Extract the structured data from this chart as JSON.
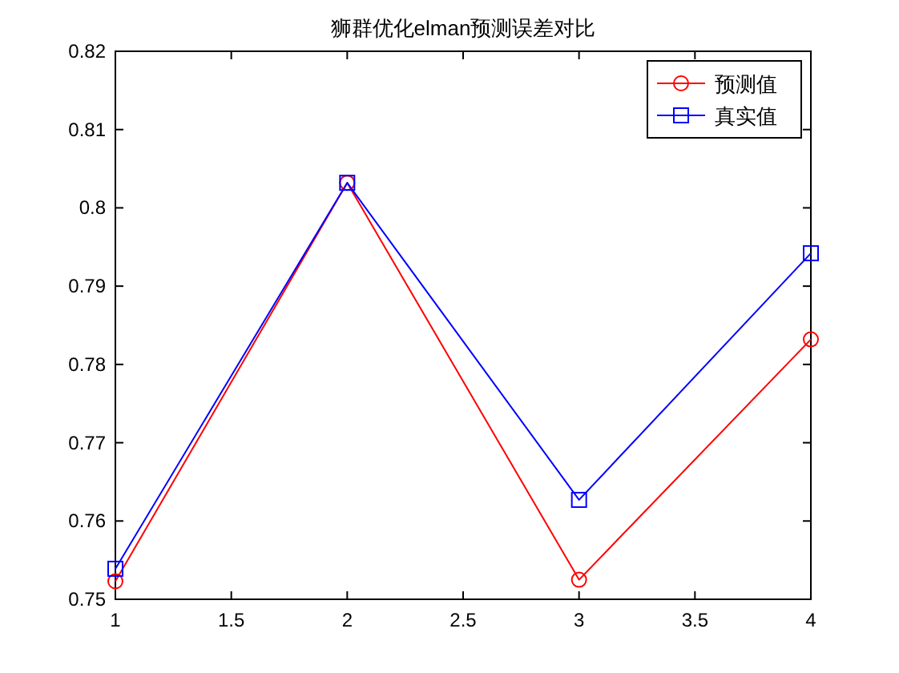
{
  "chart_data": {
    "type": "line",
    "title": "狮群优化elman预测误差对比",
    "x": [
      1,
      2,
      3,
      4
    ],
    "series": [
      {
        "name": "预测值",
        "color": "#ff0000",
        "marker": "circle",
        "values": [
          0.7523,
          0.8032,
          0.7525,
          0.7832
        ]
      },
      {
        "name": "真实值",
        "color": "#0000ff",
        "marker": "square",
        "values": [
          0.7539,
          0.8032,
          0.7627,
          0.7942
        ]
      }
    ],
    "xlim": [
      1,
      4
    ],
    "xticks": [
      1,
      1.5,
      2,
      2.5,
      3,
      3.5,
      4
    ],
    "ylim": [
      0.75,
      0.82
    ],
    "yticks": [
      0.75,
      0.76,
      0.77,
      0.78,
      0.79,
      0.8,
      0.81,
      0.82
    ],
    "grid": false,
    "legend": "top right",
    "line_style": "solid"
  }
}
